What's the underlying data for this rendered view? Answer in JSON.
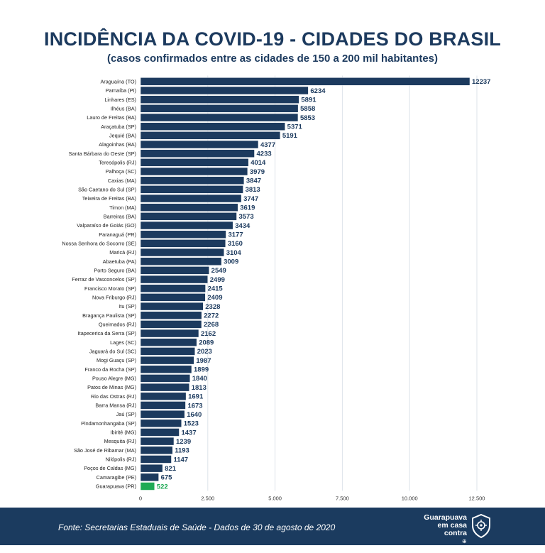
{
  "header": {
    "title": "INCIDÊNCIA DA COVID-19 - CIDADES DO BRASIL",
    "subtitle": "(casos confirmados entre as cidades de 150 a 200 mil habitantes)"
  },
  "footer": {
    "source": "Fonte: Secretarias Estaduais de Saúde -  Dados de 30  de agosto de 2020",
    "brand_line1": "Guarapuava",
    "brand_line2": "em casa contra",
    "brand_line3": "⊕ CORONAVÍRUS"
  },
  "colors": {
    "bar": "#1c3a5e",
    "highlight": "#1faa55",
    "text": "#1c3a5e",
    "footer": "#1b3b5f"
  },
  "chart_data": {
    "type": "bar",
    "orientation": "horizontal",
    "categories": [
      "Araguaína (TO)",
      "Parnaíba (PI)",
      "Linhares (ES)",
      "Ilhéus (BA)",
      "Lauro de Freitas (BA)",
      "Araçatuba (SP)",
      "Jequié (BA)",
      "Alagoinhas (BA)",
      "Santa Bárbara do Oeste (SP)",
      "Teresópolis (RJ)",
      "Palhoça (SC)",
      "Caxias (MA)",
      "São Caetano do Sul (SP)",
      "Teixeira de Freitas (BA)",
      "Timon (MA)",
      "Barreiras (BA)",
      "Valparaíso de Goiás (GO)",
      "Paranaguá (PR)",
      "Nossa Senhora do Socorro (SE)",
      "Maricá (RJ)",
      "Abaetuba (PA)",
      "Porto Seguro (BA)",
      "Ferraz de Vasconcelos (SP)",
      "Francisco Morato (SP)",
      "Nova Friburgo (RJ)",
      "Itu (SP)",
      "Bragança Paulista (SP)",
      "Queimados  (RJ)",
      "Itapecerica da Serra (SP)",
      "Lages (SC)",
      "Jaguará do Sul (SC)",
      "Mogi Guaçu (SP)",
      "Franco da Rocha (SP)",
      "Pouso Alegre (MG)",
      "Patos de Minas (MG)",
      "Rio das Ostras (RJ)",
      "Barra Mansa (RJ)",
      "Jaú (SP)",
      "Pindamonhangaba (SP)",
      "Ibirité (MG)",
      "Mesquita (RJ)",
      "São José de Ribamar (MA)",
      "Nilópolis (RJ)",
      "Poços de Caldas (MG)",
      "Camaragibe (PE)",
      "Guarapuava (PR)"
    ],
    "values": [
      12237,
      6234,
      5891,
      5858,
      5853,
      5371,
      5191,
      4377,
      4233,
      4014,
      3979,
      3847,
      3813,
      3747,
      3619,
      3573,
      3434,
      3177,
      3160,
      3104,
      3009,
      2549,
      2499,
      2415,
      2409,
      2328,
      2272,
      2268,
      2162,
      2089,
      2023,
      1987,
      1899,
      1840,
      1813,
      1691,
      1673,
      1640,
      1523,
      1437,
      1239,
      1193,
      1147,
      821,
      675,
      522
    ],
    "highlight_category": "Guarapuava (PR)",
    "xlim": [
      0,
      12500
    ],
    "xticks": [
      0,
      2500,
      5000,
      7500,
      10000,
      12500
    ],
    "xtick_labels": [
      "0",
      "2.500",
      "5.000",
      "7.500",
      "10.000",
      "12.500"
    ],
    "grid": "vertical",
    "xlabel": "",
    "ylabel": ""
  }
}
